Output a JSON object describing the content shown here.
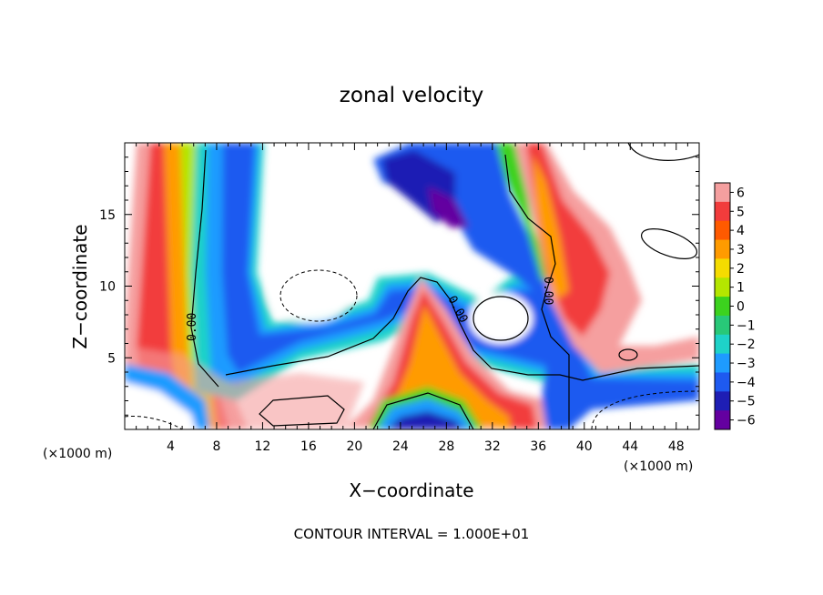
{
  "chart_data": {
    "type": "heatmap",
    "title": "zonal velocity",
    "xlabel": "X−coordinate",
    "ylabel": "Z−coordinate",
    "x_unit_label_left": "(×1000 m)",
    "x_unit_label_right": "(×1000 m)",
    "xlim": [
      0,
      50
    ],
    "ylim": [
      0,
      20
    ],
    "x_ticks": [
      4,
      8,
      12,
      16,
      20,
      24,
      28,
      32,
      36,
      40,
      44,
      48
    ],
    "y_ticks": [
      5,
      10,
      15
    ],
    "colorbar": {
      "min": -6,
      "max": 6,
      "ticks": [
        6,
        5,
        4,
        3,
        2,
        1,
        0,
        -1,
        -2,
        -3,
        -4,
        -5,
        -6
      ],
      "colors": [
        "#f59f9f",
        "#f23c3c",
        "#ff5a00",
        "#ff9b00",
        "#f5dc00",
        "#b4e600",
        "#3cd21e",
        "#28c878",
        "#1ed2c8",
        "#1e9bff",
        "#1e5af0",
        "#1e1eb4",
        "#6400a0"
      ]
    },
    "contour_labels": [
      "0.00",
      "0.00",
      "0.00"
    ],
    "note": "CONTOUR INTERVAL = 1.000E+01"
  }
}
